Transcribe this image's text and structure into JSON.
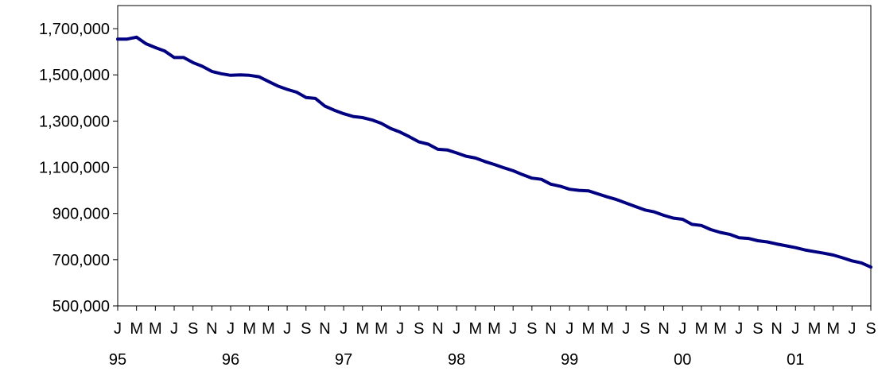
{
  "chart_data": {
    "type": "line",
    "title": "",
    "xlabel": "",
    "ylabel": "",
    "ylim": [
      500000,
      1800000
    ],
    "yticks": [
      500000,
      700000,
      900000,
      1100000,
      1300000,
      1500000,
      1700000
    ],
    "ytick_labels": [
      "500,000",
      "700,000",
      "900,000",
      "1,100,000",
      "1,300,000",
      "1,500,000",
      "1,700,000"
    ],
    "x_month_labels": [
      "J",
      "M",
      "M",
      "J",
      "S",
      "N",
      "J",
      "M",
      "M",
      "J",
      "S",
      "N",
      "J",
      "M",
      "M",
      "J",
      "S",
      "N",
      "J",
      "M",
      "M",
      "J",
      "S",
      "N",
      "J",
      "M",
      "M",
      "J",
      "S",
      "N",
      "J",
      "M",
      "M",
      "J",
      "S",
      "N",
      "J",
      "M",
      "M",
      "J",
      "S"
    ],
    "x_year_labels": [
      "95",
      "96",
      "97",
      "98",
      "99",
      "00",
      "01"
    ],
    "x_start": "1995-01",
    "x_end": "2001-09",
    "grid": false,
    "legend": "none",
    "series_color": "#000080",
    "x": [
      "1995-01",
      "1995-02",
      "1995-03",
      "1995-04",
      "1995-05",
      "1995-06",
      "1995-07",
      "1995-08",
      "1995-09",
      "1995-10",
      "1995-11",
      "1995-12",
      "1996-01",
      "1996-02",
      "1996-03",
      "1996-04",
      "1996-05",
      "1996-06",
      "1996-07",
      "1996-08",
      "1996-09",
      "1996-10",
      "1996-11",
      "1996-12",
      "1997-01",
      "1997-02",
      "1997-03",
      "1997-04",
      "1997-05",
      "1997-06",
      "1997-07",
      "1997-08",
      "1997-09",
      "1997-10",
      "1997-11",
      "1997-12",
      "1998-01",
      "1998-02",
      "1998-03",
      "1998-04",
      "1998-05",
      "1998-06",
      "1998-07",
      "1998-08",
      "1998-09",
      "1998-10",
      "1998-11",
      "1998-12",
      "1999-01",
      "1999-02",
      "1999-03",
      "1999-04",
      "1999-05",
      "1999-06",
      "1999-07",
      "1999-08",
      "1999-09",
      "1999-10",
      "1999-11",
      "1999-12",
      "2000-01",
      "2000-02",
      "2000-03",
      "2000-04",
      "2000-05",
      "2000-06",
      "2000-07",
      "2000-08",
      "2000-09",
      "2000-10",
      "2000-11",
      "2000-12",
      "2001-01",
      "2001-02",
      "2001-03",
      "2001-04",
      "2001-05",
      "2001-06",
      "2001-07",
      "2001-08",
      "2001-09"
    ],
    "series": [
      {
        "values": [
          1655000,
          1655000,
          1663000,
          1635000,
          1618000,
          1603000,
          1575000,
          1575000,
          1553000,
          1537000,
          1515000,
          1505000,
          1498000,
          1500000,
          1498000,
          1492000,
          1472000,
          1452000,
          1437000,
          1425000,
          1402000,
          1398000,
          1365000,
          1347000,
          1332000,
          1320000,
          1315000,
          1305000,
          1290000,
          1268000,
          1252000,
          1232000,
          1210000,
          1200000,
          1178000,
          1175000,
          1162000,
          1148000,
          1140000,
          1125000,
          1112000,
          1098000,
          1085000,
          1068000,
          1053000,
          1048000,
          1027000,
          1018000,
          1005000,
          1000000,
          998000,
          985000,
          972000,
          960000,
          945000,
          930000,
          915000,
          907000,
          892000,
          880000,
          875000,
          853000,
          848000,
          830000,
          818000,
          810000,
          795000,
          792000,
          782000,
          777000,
          768000,
          760000,
          752000,
          742000,
          735000,
          728000,
          720000,
          708000,
          695000,
          686000,
          668000
        ]
      }
    ]
  }
}
